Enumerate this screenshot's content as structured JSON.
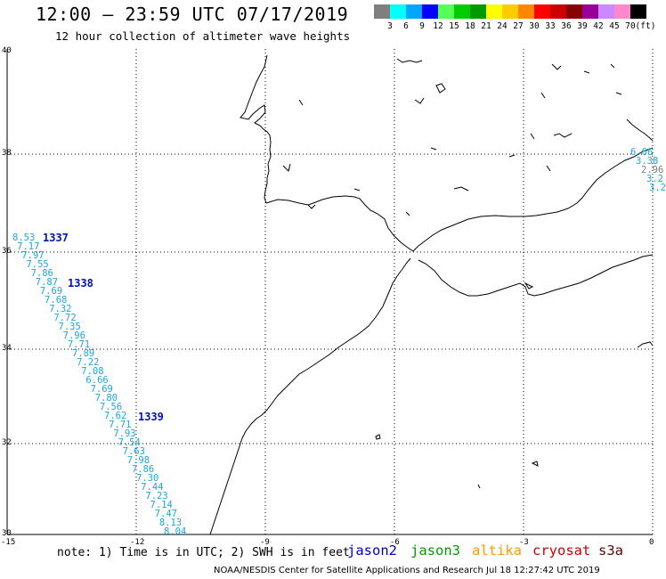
{
  "title": "12:00 – 23:59 UTC 07/17/2019",
  "subtitle": "12 hour collection of altimeter wave heights",
  "legend": {
    "unit": "(ft)",
    "levels": [
      {
        "label": "3",
        "color": "#7f7f7f"
      },
      {
        "label": "6",
        "color": "#00ffff"
      },
      {
        "label": "9",
        "color": "#00a6ff"
      },
      {
        "label": "12",
        "color": "#0000ff"
      },
      {
        "label": "15",
        "color": "#55ff55"
      },
      {
        "label": "18",
        "color": "#00cc00"
      },
      {
        "label": "21",
        "color": "#009900"
      },
      {
        "label": "24",
        "color": "#ffff00"
      },
      {
        "label": "27",
        "color": "#ffcc00"
      },
      {
        "label": "30",
        "color": "#ff8800"
      },
      {
        "label": "33",
        "color": "#ff0000"
      },
      {
        "label": "36",
        "color": "#cc0000"
      },
      {
        "label": "39",
        "color": "#880000"
      },
      {
        "label": "42",
        "color": "#990099"
      },
      {
        "label": "45",
        "color": "#cc88ff"
      },
      {
        "label": "70",
        "color": "#ff88cc"
      },
      {
        "label": "",
        "color": "#000000"
      }
    ]
  },
  "axes": {
    "lat_labels": [
      "40",
      "38",
      "36",
      "34",
      "32",
      "30"
    ],
    "lon_labels": [
      "-15",
      "-12",
      "-9",
      "-6",
      "-3",
      "0"
    ]
  },
  "orbits": [
    {
      "label": "1337"
    },
    {
      "label": "1338"
    },
    {
      "label": "1339"
    }
  ],
  "track_main": [
    "8.53",
    "7.17",
    "7.97",
    "7.55",
    "7.86",
    "7.87",
    "7.69",
    "7.68",
    "7.32",
    "7.72",
    "7.35",
    "7.96",
    "7.71",
    "7.89",
    "7.22",
    "7.08",
    "6.66",
    "7.69",
    "7.80",
    "7.56",
    "7.62",
    "7.71",
    "7.93",
    "7.54",
    "7.63",
    "7.98",
    "7.86",
    "7.30",
    "7.44",
    "7.23",
    "7.14",
    "7.47",
    "8.13",
    "8.04"
  ],
  "track_east": [
    "6.66",
    "3.38",
    "2.96",
    "3.2",
    "3.2"
  ],
  "note": "note:  1) Time is in UTC;  2) SWH is in feet",
  "satellites": [
    {
      "name": "jason2",
      "color": "#0000cc"
    },
    {
      "name": "jason3",
      "color": "#009900"
    },
    {
      "name": "altika",
      "color": "#ff9900"
    },
    {
      "name": "cryosat",
      "color": "#cc0000"
    },
    {
      "name": "s3a",
      "color": "#660000"
    }
  ],
  "credit": "NOAA/NESDIS Center for Satellite Applications and Research    Jul 18 12:27:42 UTC 2019"
}
